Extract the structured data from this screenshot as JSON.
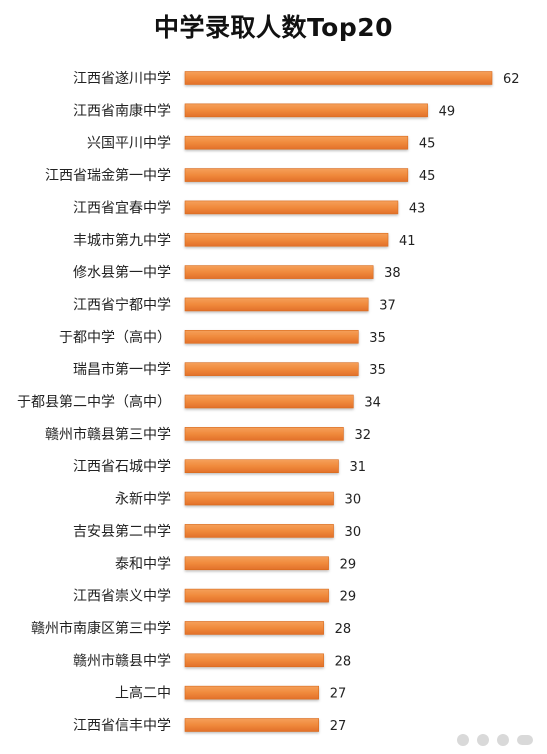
{
  "chart_data": {
    "type": "bar",
    "orientation": "horizontal",
    "title": "中学录取人数Top20",
    "xlabel": "",
    "ylabel": "",
    "categories": [
      "江西省遂川中学",
      "江西省南康中学",
      "兴国平川中学",
      "江西省瑞金第一中学",
      "江西省宜春中学",
      "丰城市第九中学",
      "修水县第一中学",
      "江西省宁都中学",
      "于都中学（高中）",
      "瑞昌市第一中学",
      "于都县第二中学（高中）",
      "赣州市赣县第三中学",
      "江西省石城中学",
      "永新中学",
      "吉安县第二中学",
      "泰和中学",
      "江西省崇义中学",
      "赣州市南康区第三中学",
      "赣州市赣县中学",
      "上高二中",
      "江西省信丰中学"
    ],
    "values": [
      62,
      49,
      45,
      45,
      43,
      41,
      38,
      37,
      35,
      35,
      34,
      32,
      31,
      30,
      30,
      29,
      29,
      28,
      28,
      27,
      27
    ],
    "xlim": [
      0,
      62
    ],
    "grid": false,
    "legend": "none",
    "bar_color": "#f08a3c",
    "bar_edge_color": "#d86a1f"
  },
  "watermark": {
    "icon": "dots-watermark-icon"
  }
}
